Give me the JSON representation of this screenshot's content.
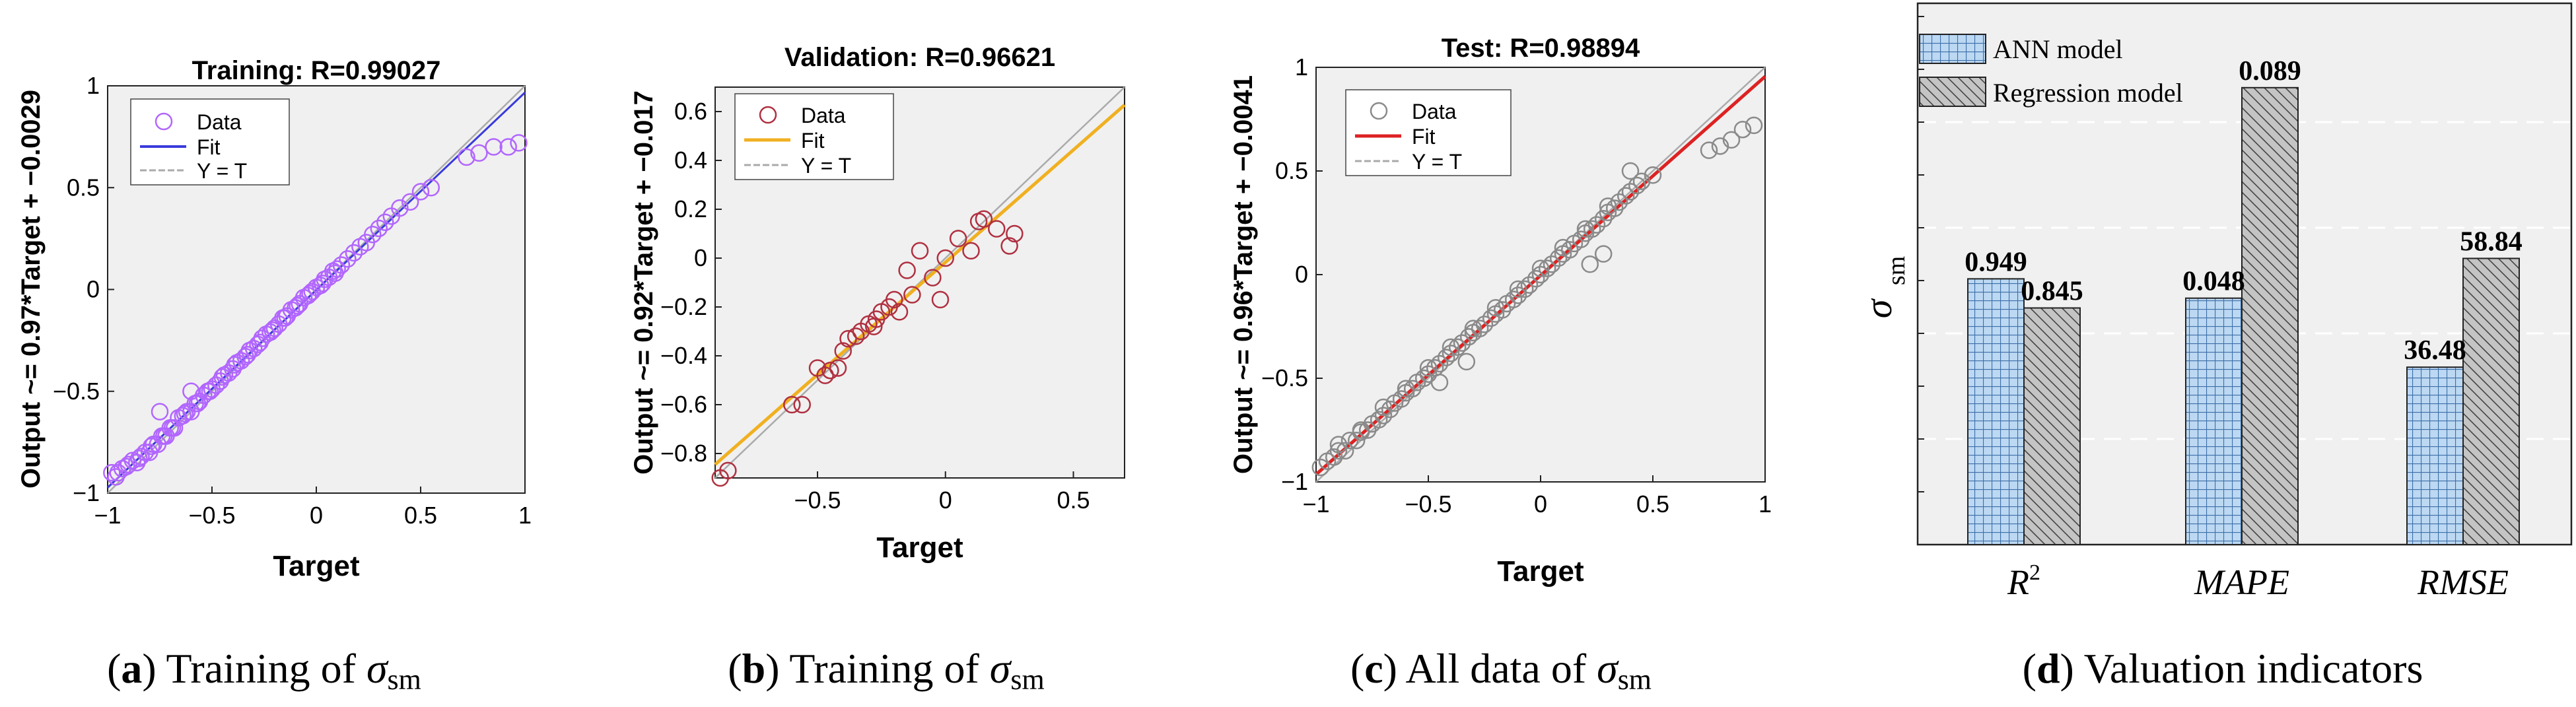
{
  "colors": {
    "panel_bg": "#f0f0f0",
    "training_data": "#b266ff",
    "training_fit": "#3a3adc",
    "validation_data": "#b03040",
    "validation_fit": "#f0b020",
    "test_data": "#8a8a8a",
    "test_fit": "#dd2222",
    "identity": "#aaaaaa",
    "ann_fill": "#bcd8f2",
    "reg_fill": "#c4c4c4"
  },
  "captions": [
    {
      "label": "a",
      "text": "Training of ",
      "sym": "σ",
      "sub": "sm"
    },
    {
      "label": "b",
      "text": "Training of ",
      "sym": "σ",
      "sub": "sm"
    },
    {
      "label": "c",
      "text": "All data of ",
      "sym": "σ",
      "sub": "sm"
    },
    {
      "label": "d",
      "text": "Valuation indicators",
      "sym": "",
      "sub": ""
    }
  ],
  "chart_data": [
    {
      "type": "scatter",
      "title": "Training: R=0.99027",
      "xlabel": "Target",
      "ylabel": "Output ~= 0.97*Target + −0.0029",
      "xlim": [
        -1,
        1
      ],
      "ylim": [
        -1,
        1
      ],
      "xticks": [
        -1,
        -0.5,
        0,
        0.5,
        1
      ],
      "xtick_labels": [
        "−1",
        "−0.5",
        "0",
        "0.5",
        "1"
      ],
      "yticks": [
        -1,
        -0.5,
        0,
        0.5,
        1
      ],
      "ytick_labels": [
        "−1",
        "−0.5",
        "0",
        "0.5",
        "1"
      ],
      "legend": [
        "Data",
        "Fit",
        "Y = T"
      ],
      "legend_position": "top-left",
      "fit": {
        "slope": 0.97,
        "intercept": -0.0029
      },
      "data_x": [
        -0.98,
        -0.95,
        -0.93,
        -0.9,
        -0.88,
        -0.86,
        -0.84,
        -0.82,
        -0.8,
        -0.78,
        -0.76,
        -0.74,
        -0.72,
        -0.7,
        -0.68,
        -0.66,
        -0.64,
        -0.62,
        -0.6,
        -0.58,
        -0.56,
        -0.54,
        -0.52,
        -0.5,
        -0.48,
        -0.46,
        -0.44,
        -0.42,
        -0.4,
        -0.38,
        -0.36,
        -0.34,
        -0.32,
        -0.3,
        -0.28,
        -0.26,
        -0.24,
        -0.22,
        -0.2,
        -0.18,
        -0.16,
        -0.14,
        -0.12,
        -0.1,
        -0.08,
        -0.06,
        -0.04,
        -0.02,
        0.0,
        0.02,
        0.04,
        0.06,
        0.08,
        0.1,
        0.12,
        0.15,
        0.18,
        0.21,
        0.24,
        0.27,
        0.3,
        0.33,
        0.36,
        0.4,
        0.45,
        0.5,
        0.55,
        0.72,
        0.78,
        0.85,
        0.92,
        0.97,
        -0.96,
        -0.91,
        -0.85,
        -0.79,
        -0.73,
        -0.69,
        -0.63,
        -0.57,
        -0.51,
        -0.45,
        -0.39,
        -0.33,
        -0.27,
        -0.21,
        -0.15,
        -0.09,
        -0.03,
        0.03,
        0.09,
        -0.75,
        -0.6
      ],
      "data_y": [
        -0.9,
        -0.9,
        -0.88,
        -0.86,
        -0.84,
        -0.85,
        -0.82,
        -0.8,
        -0.8,
        -0.76,
        -0.76,
        -0.72,
        -0.72,
        -0.68,
        -0.68,
        -0.63,
        -0.62,
        -0.6,
        -0.6,
        -0.56,
        -0.55,
        -0.52,
        -0.5,
        -0.49,
        -0.47,
        -0.45,
        -0.42,
        -0.41,
        -0.39,
        -0.36,
        -0.35,
        -0.33,
        -0.3,
        -0.29,
        -0.27,
        -0.24,
        -0.22,
        -0.21,
        -0.19,
        -0.17,
        -0.14,
        -0.13,
        -0.1,
        -0.09,
        -0.07,
        -0.04,
        -0.03,
        -0.01,
        0.01,
        0.02,
        0.05,
        0.06,
        0.09,
        0.1,
        0.12,
        0.15,
        0.18,
        0.21,
        0.23,
        0.27,
        0.3,
        0.33,
        0.36,
        0.4,
        0.43,
        0.48,
        0.5,
        0.65,
        0.67,
        0.7,
        0.7,
        0.72,
        -0.92,
        -0.87,
        -0.83,
        -0.77,
        -0.72,
        -0.68,
        -0.61,
        -0.56,
        -0.5,
        -0.43,
        -0.37,
        -0.32,
        -0.26,
        -0.2,
        -0.14,
        -0.08,
        -0.02,
        0.03,
        0.08,
        -0.6,
        -0.5
      ]
    },
    {
      "type": "scatter",
      "title": "Validation: R=0.96621",
      "xlabel": "Target",
      "ylabel": "Output ~= 0.92*Target + −0.017",
      "xlim": [
        -0.9,
        0.7
      ],
      "ylim": [
        -0.9,
        0.7
      ],
      "xticks": [
        -0.5,
        0,
        0.5
      ],
      "xtick_labels": [
        "−0.5",
        "0",
        "0.5"
      ],
      "yticks": [
        -0.8,
        -0.6,
        -0.4,
        -0.2,
        0,
        0.2,
        0.4,
        0.6
      ],
      "ytick_labels": [
        "−0.8",
        "−0.6",
        "−0.4",
        "−0.2",
        "0",
        "0.2",
        "0.4",
        "0.6"
      ],
      "legend": [
        "Data",
        "Fit",
        "Y = T"
      ],
      "legend_position": "top-left",
      "fit": {
        "slope": 0.92,
        "intercept": -0.017
      },
      "data_x": [
        -0.88,
        -0.85,
        -0.6,
        -0.56,
        -0.5,
        -0.47,
        -0.45,
        -0.42,
        -0.38,
        -0.35,
        -0.33,
        -0.3,
        -0.28,
        -0.25,
        -0.22,
        -0.2,
        -0.18,
        -0.15,
        -0.13,
        -0.1,
        -0.05,
        0.0,
        0.05,
        0.1,
        0.13,
        0.15,
        0.2,
        0.25,
        0.27,
        -0.4,
        -0.27,
        -0.02
      ],
      "data_y": [
        -0.9,
        -0.87,
        -0.6,
        -0.6,
        -0.45,
        -0.48,
        -0.46,
        -0.45,
        -0.33,
        -0.32,
        -0.3,
        -0.27,
        -0.28,
        -0.22,
        -0.2,
        -0.17,
        -0.22,
        -0.05,
        -0.15,
        0.03,
        -0.08,
        0.0,
        0.08,
        0.03,
        0.15,
        0.16,
        0.12,
        0.05,
        0.1,
        -0.38,
        -0.25,
        -0.17
      ]
    },
    {
      "type": "scatter",
      "title": "Test: R=0.98894",
      "xlabel": "Target",
      "ylabel": "Output ~= 0.96*Target + −0.0041",
      "xlim": [
        -1,
        1
      ],
      "ylim": [
        -1,
        1
      ],
      "xticks": [
        -1,
        -0.5,
        0,
        0.5,
        1
      ],
      "xtick_labels": [
        "−1",
        "−0.5",
        "0",
        "0.5",
        "1"
      ],
      "yticks": [
        -1,
        -0.5,
        0,
        0.5,
        1
      ],
      "ytick_labels": [
        "−1",
        "−0.5",
        "0",
        "0.5",
        "1"
      ],
      "legend": [
        "Data",
        "Fit",
        "Y = T"
      ],
      "legend_position": "top-left",
      "fit": {
        "slope": 0.96,
        "intercept": -0.0041
      },
      "data_x": [
        -0.98,
        -0.95,
        -0.92,
        -0.9,
        -0.87,
        -0.85,
        -0.82,
        -0.8,
        -0.77,
        -0.75,
        -0.72,
        -0.7,
        -0.67,
        -0.65,
        -0.62,
        -0.6,
        -0.57,
        -0.55,
        -0.52,
        -0.5,
        -0.47,
        -0.45,
        -0.42,
        -0.4,
        -0.37,
        -0.35,
        -0.32,
        -0.3,
        -0.27,
        -0.25,
        -0.22,
        -0.2,
        -0.17,
        -0.15,
        -0.12,
        -0.1,
        -0.07,
        -0.05,
        -0.02,
        0.0,
        0.03,
        0.05,
        0.08,
        0.1,
        0.13,
        0.15,
        0.18,
        0.2,
        0.23,
        0.25,
        0.28,
        0.3,
        0.33,
        0.35,
        0.38,
        0.4,
        0.43,
        0.45,
        0.5,
        0.75,
        0.8,
        0.85,
        0.9,
        0.95,
        -0.9,
        -0.8,
        -0.7,
        -0.6,
        -0.5,
        -0.4,
        -0.3,
        -0.2,
        -0.1,
        0.0,
        0.1,
        0.2,
        0.3,
        0.4,
        0.28,
        0.22,
        -0.33,
        -0.45
      ],
      "data_y": [
        -0.93,
        -0.9,
        -0.88,
        -0.85,
        -0.85,
        -0.8,
        -0.8,
        -0.76,
        -0.75,
        -0.72,
        -0.7,
        -0.68,
        -0.65,
        -0.62,
        -0.6,
        -0.57,
        -0.55,
        -0.52,
        -0.5,
        -0.48,
        -0.45,
        -0.43,
        -0.4,
        -0.38,
        -0.35,
        -0.33,
        -0.3,
        -0.28,
        -0.26,
        -0.24,
        -0.21,
        -0.19,
        -0.17,
        -0.14,
        -0.12,
        -0.1,
        -0.07,
        -0.05,
        -0.02,
        0.0,
        0.03,
        0.05,
        0.08,
        0.1,
        0.12,
        0.15,
        0.17,
        0.2,
        0.22,
        0.24,
        0.27,
        0.3,
        0.32,
        0.35,
        0.38,
        0.4,
        0.43,
        0.45,
        0.48,
        0.6,
        0.62,
        0.65,
        0.7,
        0.72,
        -0.82,
        -0.75,
        -0.64,
        -0.55,
        -0.45,
        -0.35,
        -0.26,
        -0.16,
        -0.07,
        0.03,
        0.13,
        0.22,
        0.33,
        0.5,
        0.1,
        0.05,
        -0.42,
        -0.52
      ]
    },
    {
      "type": "bar",
      "title": "",
      "ylabel": "σ",
      "ylabel_sub": "sm",
      "categories": [
        "R",
        "MAPE",
        "RMSE"
      ],
      "category_superscripts": [
        "2",
        "",
        ""
      ],
      "series": [
        {
          "name": "ANN model",
          "values": [
            0.949,
            0.048,
            36.48
          ],
          "labels": [
            "0.949",
            "0.048",
            "36.48"
          ]
        },
        {
          "name": "Regression model",
          "values": [
            0.845,
            0.089,
            58.84
          ],
          "labels": [
            "0.845",
            "0.089",
            "58.84"
          ]
        }
      ],
      "group_scale_max": [
        1.65,
        0.09,
        95
      ],
      "gridlines": "dashed",
      "legend_position": "top-left"
    }
  ]
}
